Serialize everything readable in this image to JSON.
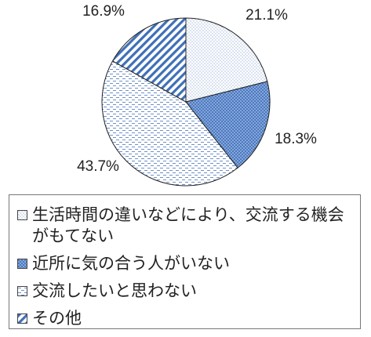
{
  "chart_data": {
    "type": "pie",
    "start_angle_deg": 0,
    "direction": "clockwise",
    "slices": [
      {
        "label": "生活時間の違いなどにより、交流する機会がもてない",
        "value": 21.1,
        "value_label": "21.1%",
        "pattern": "dots",
        "fill": "#ffffff",
        "ink": "#4a74b8"
      },
      {
        "label": "近所に気の合う人がいない",
        "value": 18.3,
        "value_label": "18.3%",
        "pattern": "dense-dots",
        "fill": "#7fa8e3",
        "ink": "#1d3f80"
      },
      {
        "label": "交流したいと思わない",
        "value": 43.7,
        "value_label": "43.7%",
        "pattern": "dashes",
        "fill": "#ffffff",
        "ink": "#4a74b8"
      },
      {
        "label": "その他",
        "value": 16.9,
        "value_label": "16.9%",
        "pattern": "diagonal-stripes",
        "fill": "#ffffff",
        "ink": "#3f6fb8"
      }
    ],
    "legend_position": "bottom"
  }
}
